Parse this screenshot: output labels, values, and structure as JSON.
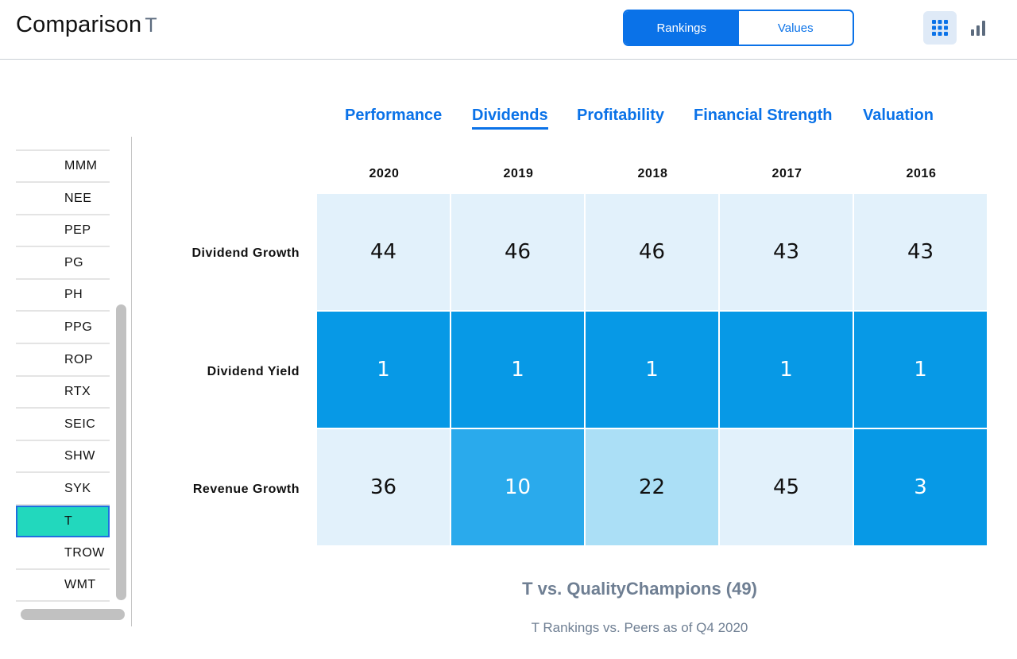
{
  "header": {
    "title": "Comparison",
    "ticker": "T",
    "toggle": {
      "rankings_label": "Rankings",
      "values_label": "Values",
      "selected": "Rankings"
    },
    "view_icons": [
      "grid-view-icon",
      "bar-chart-icon"
    ]
  },
  "sidebar": {
    "partial_top_item": "",
    "items": [
      "MMM",
      "NEE",
      "PEP",
      "PG",
      "PH",
      "PPG",
      "ROP",
      "RTX",
      "SEIC",
      "SHW",
      "SYK",
      "T",
      "TROW",
      "WMT"
    ],
    "selected": "T"
  },
  "tabs": [
    "Performance",
    "Dividends",
    "Profitability",
    "Financial Strength",
    "Valuation"
  ],
  "active_tab": "Dividends",
  "chart_data": {
    "type": "heatmap",
    "columns": [
      "2020",
      "2019",
      "2018",
      "2017",
      "2016"
    ],
    "rows": [
      "Dividend Growth",
      "Dividend Yield",
      "Revenue Growth"
    ],
    "values": [
      [
        44,
        46,
        46,
        43,
        43
      ],
      [
        1,
        1,
        1,
        1,
        1
      ],
      [
        36,
        10,
        22,
        45,
        3
      ]
    ],
    "title": "T vs. QualityChampions (49)",
    "subtitle": "T Rankings vs. Peers as of Q4 2020",
    "colors": {
      "rank_1_5": "#0799e6",
      "rank_6_15": "#2aaaec",
      "rank_16_30": "#abdff6",
      "rank_31_plus": "#e2f1fb"
    }
  },
  "colors": {
    "accent": "#0a72e8",
    "selected_row": "#22d8bd",
    "caption": "#6f7f93"
  }
}
